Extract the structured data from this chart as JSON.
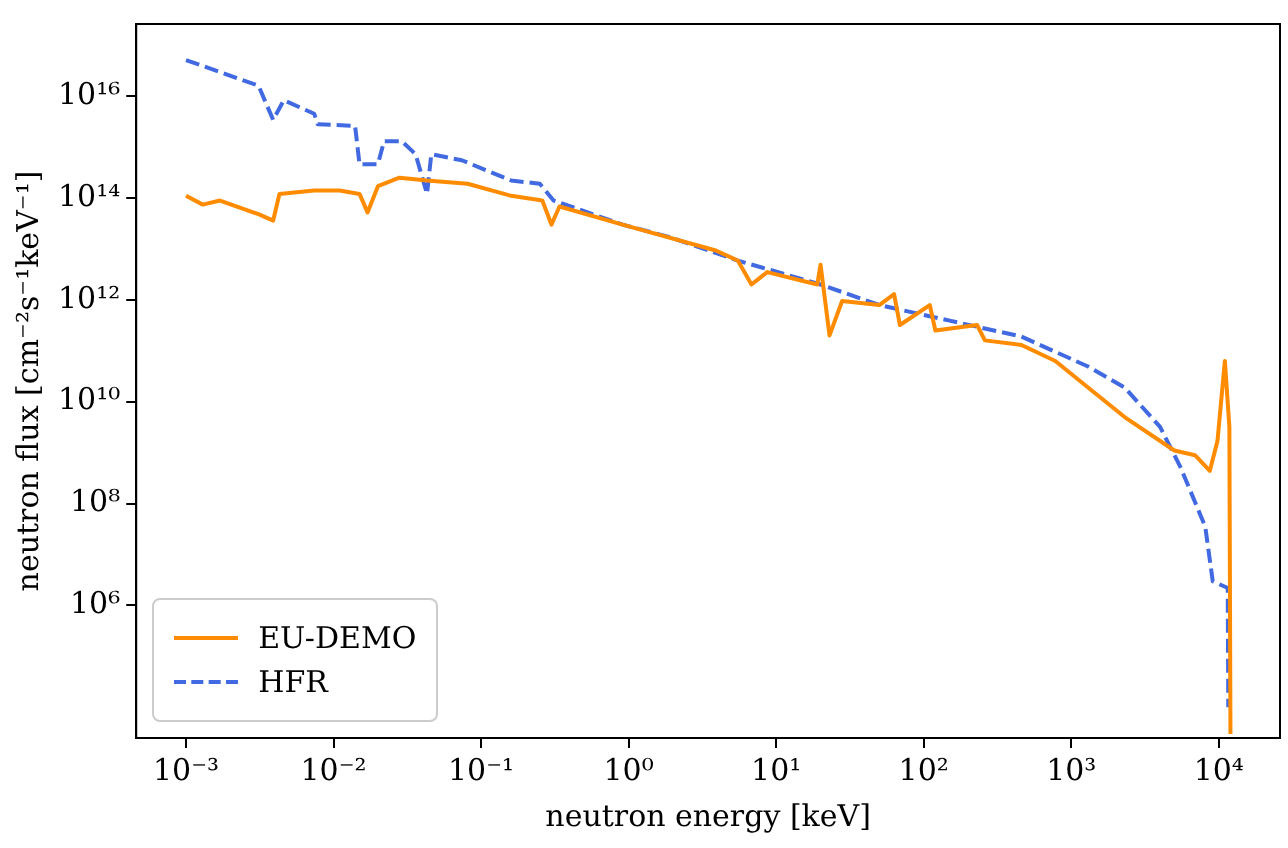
{
  "chart_data": {
    "type": "line",
    "xlabel": "neutron energy [keV]",
    "ylabel": "neutron flux [cm⁻²s⁻¹keV⁻¹]",
    "log": "xy",
    "grid": false,
    "legend": "bottom left",
    "marker": "none",
    "xlim": [
      0.00046,
      26000
    ],
    "ylim": [
      2500,
      2.6e+17
    ],
    "xticks": [
      {
        "value": 0.001,
        "label": "10⁻³"
      },
      {
        "value": 0.01,
        "label": "10⁻²"
      },
      {
        "value": 0.1,
        "label": "10⁻¹"
      },
      {
        "value": 1,
        "label": "10⁰"
      },
      {
        "value": 10,
        "label": "10¹"
      },
      {
        "value": 100,
        "label": "10²"
      },
      {
        "value": 1000,
        "label": "10³"
      },
      {
        "value": 10000,
        "label": "10⁴"
      }
    ],
    "yticks": [
      {
        "value": 1000000.0,
        "label": "10⁶"
      },
      {
        "value": 100000000.0,
        "label": "10⁸"
      },
      {
        "value": 10000000000.0,
        "label": "10¹⁰"
      },
      {
        "value": 1000000000000.0,
        "label": "10¹²"
      },
      {
        "value": 100000000000000.0,
        "label": "10¹⁴"
      },
      {
        "value": 1e+16,
        "label": "10¹⁶"
      }
    ],
    "series": [
      {
        "name": "EU-DEMO",
        "color": "#ff8c00",
        "line_style": "solid",
        "x": [
          0.001,
          0.0013,
          0.0017,
          0.0031,
          0.0039,
          0.0043,
          0.0074,
          0.011,
          0.015,
          0.017,
          0.02,
          0.028,
          0.043,
          0.081,
          0.16,
          0.26,
          0.3,
          0.34,
          0.91,
          3.9,
          5.5,
          6.8,
          8.7,
          19,
          20,
          23,
          28,
          50,
          63,
          69,
          110,
          120,
          230,
          260,
          460,
          780,
          1300,
          2300,
          5000,
          6900,
          8700,
          9800,
          11000,
          11800,
          12000
        ],
        "values": [
          110000000000000.0,
          74000000000000.0,
          89000000000000.0,
          48000000000000.0,
          36000000000000.0,
          120000000000000.0,
          140000000000000.0,
          140000000000000.0,
          120000000000000.0,
          52000000000000.0,
          170000000000000.0,
          250000000000000.0,
          220000000000000.0,
          190000000000000.0,
          110000000000000.0,
          89000000000000.0,
          30000000000000.0,
          68000000000000.0,
          30000000000000.0,
          9300000000000.0,
          5900000000000.0,
          2000000000000.0,
          3500000000000.0,
          2000000000000.0,
          4900000000000.0,
          200000000000.0,
          950000000000.0,
          790000000000.0,
          1300000000000.0,
          320000000000.0,
          790000000000.0,
          250000000000.0,
          320000000000.0,
          160000000000.0,
          130000000000.0,
          63000000000.0,
          19000000000.0,
          5000000000.0,
          1100000000.0,
          890000000.0,
          440000000.0,
          1700000000.0,
          63000000000.0,
          3200000000.0,
          3000
        ]
      },
      {
        "name": "HFR",
        "color": "#4169e1",
        "line_style": "dashed",
        "x": [
          0.001,
          0.0031,
          0.0039,
          0.0046,
          0.0074,
          0.0078,
          0.014,
          0.015,
          0.02,
          0.022,
          0.029,
          0.036,
          0.043,
          0.046,
          0.074,
          0.16,
          0.25,
          0.31,
          0.91,
          1.9,
          5.5,
          20,
          50,
          150,
          460,
          1300,
          2300,
          4000,
          5500,
          8100,
          9100,
          11500,
          11600
        ],
        "values": [
          5.1e+16,
          1.6e+16,
          3400000000000000.0,
          8300000000000000.0,
          4500000000000000.0,
          2800000000000000.0,
          2600000000000000.0,
          460000000000000.0,
          460000000000000.0,
          1300000000000000.0,
          1300000000000000.0,
          720000000000000.0,
          120000000000000.0,
          720000000000000.0,
          550000000000000.0,
          220000000000000.0,
          190000000000000.0,
          89000000000000.0,
          30000000000000.0,
          17000000000000.0,
          5900000000000.0,
          2000000000000.0,
          790000000000.0,
          390000000000.0,
          190000000000.0,
          49000000000.0,
          19000000000.0,
          3200000000.0,
          520000000.0,
          35000000.0,
          3000000.0,
          2200000.0,
          10000.0
        ]
      }
    ]
  }
}
